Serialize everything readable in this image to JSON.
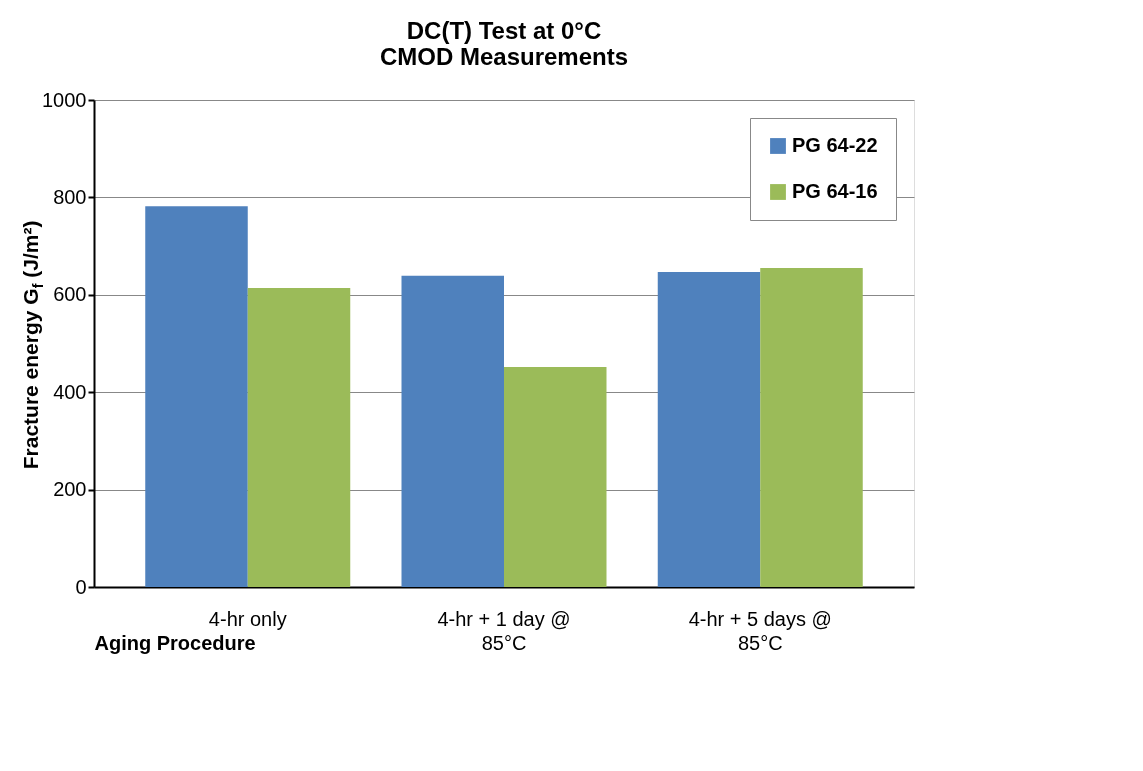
{
  "chart_data": {
    "type": "bar",
    "title": [
      "DC(T) Test at 0°C",
      "CMOD Measurements"
    ],
    "xlabel": "Aging Procedure",
    "ylabel": "Fracture energy G$_{f}$ (J/m²)",
    "categories": [
      "4-hr only",
      "4-hr + 1 day @ 85°C",
      "4-hr + 5 days @ 85°C"
    ],
    "series": [
      {
        "name": "PG 64-22",
        "color": "#4f81bd",
        "values": [
          782,
          639,
          647
        ]
      },
      {
        "name": "PG 64-16",
        "color": "#9bbb59",
        "values": [
          614,
          452,
          655
        ]
      }
    ],
    "ylim": [
      0,
      1000
    ],
    "yticks": [
      0,
      200,
      400,
      600,
      800,
      1000
    ],
    "grid": "y",
    "legend": "top right"
  }
}
